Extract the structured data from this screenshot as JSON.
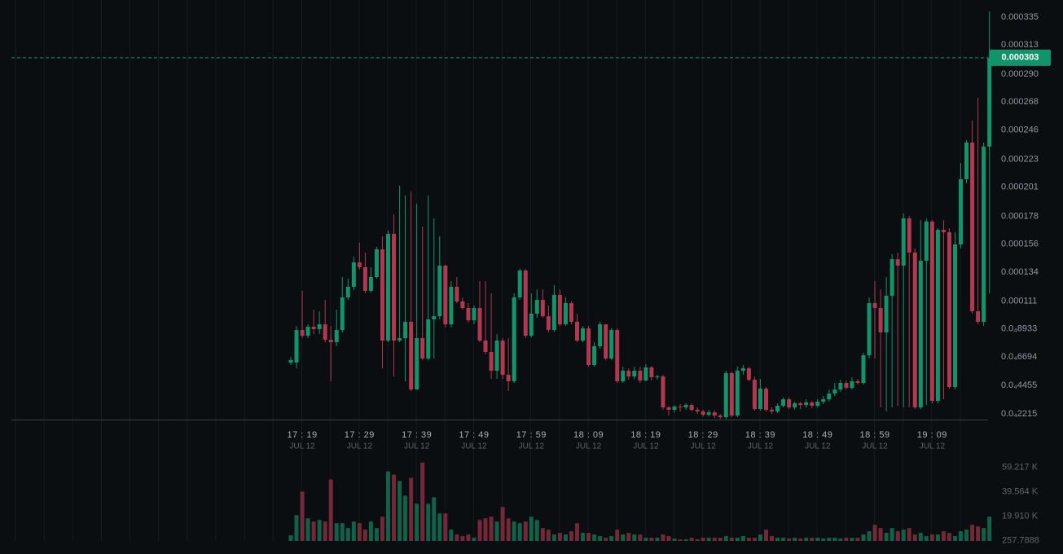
{
  "chart_data": {
    "type": "candlestick",
    "up_color": "#12946b",
    "down_color": "#b2384f",
    "ylim": [
      1.77e-05,
      0.0003395
    ],
    "yticks": [
      0.000335,
      0.000313,
      {
        "value": 0.00029,
        "label": "0.000290"
      },
      0.000268,
      0.000246,
      0.000223,
      0.000201,
      0.000178,
      0.000156,
      0.000134,
      0.000111,
      {
        "value": 8.933e-05,
        "label": "0.0₄8933"
      },
      {
        "value": 6.694e-05,
        "label": "0.0₄6694"
      },
      {
        "value": 4.455e-05,
        "label": "0.0₄4455"
      },
      {
        "value": 2.215e-05,
        "label": "0.0₄2215"
      }
    ],
    "xticks": [
      {
        "time": "17 : 19",
        "date": "JUL 12"
      },
      {
        "time": "17 : 29",
        "date": "JUL 12"
      },
      {
        "time": "17 : 39",
        "date": "JUL 12"
      },
      {
        "time": "17 : 49",
        "date": "JUL 12"
      },
      {
        "time": "17 : 59",
        "date": "JUL 12"
      },
      {
        "time": "18 : 09",
        "date": "JUL 12"
      },
      {
        "time": "18 : 19",
        "date": "JUL 12"
      },
      {
        "time": "18 : 29",
        "date": "JUL 12"
      },
      {
        "time": "18 : 39",
        "date": "JUL 12"
      },
      {
        "time": "18 : 49",
        "date": "JUL 12"
      },
      {
        "time": "18 : 59",
        "date": "JUL 12"
      },
      {
        "time": "19 : 09",
        "date": "JUL 12"
      }
    ],
    "open": [
      6.26e-05,
      6.26e-05,
      8.83e-05,
      8.38e-05,
      9.09e-05,
      8.9e-05,
      9.28e-05,
      8.06e-05,
      7.87e-05,
      8.83e-05,
      0.000114,
      0.0001224,
      0.0001416,
      0.0001378,
      0.0001192,
      0.0001301,
      0.0001519,
      8e-05,
      0.0001641,
      8e-05,
      8.19e-05,
      9.48e-05,
      4.14e-05,
      8.19e-05,
      6.58e-05,
      9.67e-05,
      9.92e-05,
      0.0001391,
      9.28e-05,
      0.0001224,
      0.0001108,
      0.0001057,
      9.6e-05,
      0.0001057,
      8e-05,
      7.1e-05,
      5.62e-05,
      8e-05,
      5.3e-05,
      4.79e-05,
      0.000114,
      0.0001352,
      8.38e-05,
      0.0001012,
      0.0001121,
      9.92e-05,
      8.83e-05,
      0.000116,
      9.28e-05,
      0.0001095,
      9.48e-05,
      8e-05,
      8.96e-05,
      6.07e-05,
      7.55e-05,
      9.28e-05,
      6.58e-05,
      8.83e-05,
      4.79e-05,
      5.62e-05,
      5.17e-05,
      5.62e-05,
      4.85e-05,
      5.88e-05,
      5.11e-05,
      5.17e-05,
      2.73e-05,
      2.54e-05,
      2.79e-05,
      2.73e-05,
      2.92e-05,
      2.54e-05,
      2.41e-05,
      2.15e-05,
      2.34e-05,
      2.09e-05,
      1.96e-05,
      5.43e-05,
      2.09e-05,
      5.62e-05,
      5.81e-05,
      4.91e-05,
      2.6e-05,
      4.21e-05,
      2.54e-05,
      2.41e-05,
      2.86e-05,
      3.37e-05,
      2.73e-05,
      3.05e-05,
      2.92e-05,
      3.12e-05,
      2.86e-05,
      3.18e-05,
      3.37e-05,
      3.82e-05,
      4.14e-05,
      4.66e-05,
      4.27e-05,
      4.79e-05,
      4.66e-05,
      6.84e-05,
      0.0001095,
      0.0001057,
      8.64e-05,
      0.0001153,
      0.0001442,
      0.0001391,
      0.0001763,
      0.0001494,
      2.73e-05,
      0.0001429,
      0.0001738,
      3.24e-05,
      0.0001673,
      0.0001654,
      4.34e-05,
      0.0001558,
      0.0002072,
      0.0002361,
      0.0001031,
      9.48e-05,
      0.0002329
    ],
    "high": [
      6.71e-05,
      9.15e-05,
      0.0001192,
      9.28e-05,
      0.0001044,
      0.0001031,
      0.0001121,
      9.15e-05,
      0.0001044,
      0.0001301,
      0.0001288,
      0.0001461,
      0.0001571,
      0.0001494,
      0.0001378,
      0.0001539,
      0.0001622,
      0.0001667,
      0.0001796,
      0.000202,
      0.0001943,
      0.0001975,
      0.0001879,
      0.0001699,
      0.0001943,
      0.0001763,
      0.0001622,
      0.0001397,
      0.0001269,
      0.0001301,
      0.000114,
      0.0001095,
      0.0001076,
      0.0001269,
      0.0001269,
      0.0001172,
      8.51e-05,
      8.19e-05,
      8.19e-05,
      0.0001172,
      0.0001365,
      0.0001365,
      0.0001172,
      0.0001204,
      0.0001204,
      0.0001076,
      0.0001237,
      0.0001204,
      0.000114,
      0.0001108,
      0.0001012,
      9.15e-05,
      9.15e-05,
      7.87e-05,
      9.48e-05,
      9.15e-05,
      8.96e-05,
      8.96e-05,
      5.94e-05,
      5.81e-05,
      5.94e-05,
      5.94e-05,
      6.14e-05,
      6.01e-05,
      5.3e-05,
      5.3e-05,
      2.86e-05,
      2.92e-05,
      2.99e-05,
      3.05e-05,
      3.05e-05,
      2.73e-05,
      2.54e-05,
      2.54e-05,
      2.47e-05,
      2.22e-05,
      5.62e-05,
      5.56e-05,
      5.94e-05,
      6.07e-05,
      5.94e-05,
      5.17e-05,
      4.98e-05,
      4.34e-05,
      2.73e-05,
      3.05e-05,
      3.5e-05,
      3.5e-05,
      3.18e-05,
      3.18e-05,
      3.37e-05,
      3.24e-05,
      3.37e-05,
      3.63e-05,
      4.14e-05,
      4.66e-05,
      4.91e-05,
      4.85e-05,
      5.11e-05,
      4.98e-05,
      7.03e-05,
      0.000114,
      0.0001269,
      0.0001204,
      0.0001301,
      0.0001481,
      0.0001494,
      0.0001802,
      0.0001783,
      0.0001526,
      0.000175,
      0.0001763,
      0.000175,
      0.0001686,
      0.000175,
      0.0001686,
      0.0001654,
      0.00022,
      0.000238,
      0.0002534,
      0.0002714,
      0.0002361,
      0.0003395
    ],
    "low": [
      6.07e-05,
      5.81e-05,
      8.19e-05,
      8.19e-05,
      8.51e-05,
      8.51e-05,
      7.87e-05,
      4.79e-05,
      7.55e-05,
      8.64e-05,
      0.0001121,
      0.0001198,
      0.0001359,
      0.0001172,
      0.0001179,
      0.0001288,
      5.81e-05,
      7.87e-05,
      5.17e-05,
      7.87e-05,
      4.79e-05,
      4.01e-05,
      4.14e-05,
      6.46e-05,
      6.46e-05,
      6.58e-05,
      9.67e-05,
      9.03e-05,
      9.03e-05,
      0.0001095,
      0.0001044,
      9.41e-05,
      9.28e-05,
      7.87e-05,
      6.91e-05,
      4.98e-05,
      4.98e-05,
      4.98e-05,
      4.01e-05,
      4.66e-05,
      0.0001121,
      8.19e-05,
      8.25e-05,
      9.8e-05,
      9.8e-05,
      8.64e-05,
      8.7e-05,
      9.15e-05,
      9.15e-05,
      9.28e-05,
      7.87e-05,
      7.87e-05,
      5.94e-05,
      5.94e-05,
      7.36e-05,
      6.46e-05,
      6.46e-05,
      4.66e-05,
      4.66e-05,
      4.91e-05,
      4.98e-05,
      4.66e-05,
      4.79e-05,
      4.85e-05,
      4.91e-05,
      2.54e-05,
      2.09e-05,
      2.34e-05,
      2.41e-05,
      2.54e-05,
      2.41e-05,
      2.22e-05,
      2.02e-05,
      2.02e-05,
      1.9e-05,
      1.83e-05,
      1.83e-05,
      1.96e-05,
      1.96e-05,
      5.3e-05,
      4.79e-05,
      2.47e-05,
      2.47e-05,
      2.41e-05,
      2.22e-05,
      2.28e-05,
      2.73e-05,
      2.6e-05,
      2.54e-05,
      2.6e-05,
      2.73e-05,
      2.67e-05,
      2.73e-05,
      2.99e-05,
      3.18e-05,
      3.63e-05,
      3.95e-05,
      4.14e-05,
      4.14e-05,
      4.53e-05,
      4.53e-05,
      6.58e-05,
      6.58e-05,
      2.73e-05,
      2.41e-05,
      2.73e-05,
      2.86e-05,
      2.73e-05,
      2.73e-05,
      2.6e-05,
      2.6e-05,
      2.92e-05,
      3.05e-05,
      3.05e-05,
      3.37e-05,
      4.21e-05,
      4.14e-05,
      0.0001526,
      0.000204,
      0.0001012,
      9.28e-05,
      9.15e-05,
      0.0001172
    ],
    "close": [
      6.46e-05,
      8.83e-05,
      8.38e-05,
      9.09e-05,
      8.9e-05,
      9.28e-05,
      8.06e-05,
      7.87e-05,
      8.83e-05,
      0.000114,
      0.0001224,
      0.0001416,
      0.0001378,
      0.0001192,
      0.0001301,
      0.0001519,
      8e-05,
      0.0001641,
      8e-05,
      8.19e-05,
      9.48e-05,
      4.14e-05,
      8.19e-05,
      6.58e-05,
      9.67e-05,
      9.92e-05,
      0.0001391,
      9.28e-05,
      0.0001224,
      0.0001108,
      0.0001057,
      9.6e-05,
      0.0001057,
      8e-05,
      7.1e-05,
      5.62e-05,
      8e-05,
      5.3e-05,
      4.79e-05,
      0.000114,
      0.0001352,
      8.38e-05,
      0.0001012,
      0.0001121,
      9.92e-05,
      8.83e-05,
      0.000116,
      9.28e-05,
      0.0001095,
      9.48e-05,
      8e-05,
      8.96e-05,
      6.07e-05,
      7.55e-05,
      9.28e-05,
      6.58e-05,
      8.83e-05,
      4.79e-05,
      5.62e-05,
      5.17e-05,
      5.62e-05,
      4.85e-05,
      5.88e-05,
      5.11e-05,
      5.17e-05,
      2.73e-05,
      2.54e-05,
      2.79e-05,
      2.73e-05,
      2.92e-05,
      2.54e-05,
      2.41e-05,
      2.15e-05,
      2.34e-05,
      2.09e-05,
      1.96e-05,
      5.43e-05,
      2.09e-05,
      5.62e-05,
      5.81e-05,
      4.91e-05,
      2.6e-05,
      4.21e-05,
      2.54e-05,
      2.41e-05,
      2.86e-05,
      3.37e-05,
      2.73e-05,
      3.05e-05,
      2.92e-05,
      3.12e-05,
      2.86e-05,
      3.18e-05,
      3.37e-05,
      3.82e-05,
      4.14e-05,
      4.66e-05,
      4.27e-05,
      4.79e-05,
      4.66e-05,
      6.84e-05,
      0.0001095,
      0.0001057,
      8.64e-05,
      0.0001153,
      0.0001442,
      0.0001391,
      0.0001763,
      0.0001494,
      2.73e-05,
      0.0001429,
      0.0001738,
      3.24e-05,
      0.0001673,
      0.0001654,
      4.34e-05,
      0.0001558,
      0.0002072,
      0.0002361,
      0.0001031,
      9.48e-05,
      0.0002329,
      0.000303
    ],
    "volume_ylim": [
      0,
      63500
    ],
    "volume_yticks": [
      {
        "value": 59217,
        "label": "59.217 K"
      },
      {
        "value": 39564,
        "label": "39.564 K"
      },
      {
        "value": 19910,
        "label": "19.910 K"
      },
      257.7888
    ],
    "volume": [
      4550,
      20800,
      39650,
      18200,
      15600,
      16900,
      15600,
      49400,
      14300,
      14300,
      10400,
      15600,
      14300,
      9100,
      15600,
      10400,
      19500,
      55900,
      53300,
      48100,
      36400,
      50700,
      29900,
      63000,
      29900,
      35100,
      22100,
      22100,
      9100,
      5200,
      3900,
      5200,
      2600,
      16900,
      18200,
      19500,
      15600,
      27300,
      18200,
      15600,
      14300,
      15600,
      19500,
      16900,
      10400,
      9100,
      5200,
      6500,
      5200,
      7800,
      14300,
      6500,
      6500,
      5200,
      3900,
      2600,
      3900,
      9100,
      5200,
      6500,
      5200,
      5200,
      2600,
      2600,
      2600,
      5200,
      3900,
      1950,
      1300,
      1300,
      2600,
      1300,
      2600,
      2600,
      2600,
      2600,
      3900,
      2600,
      2600,
      3900,
      2600,
      2600,
      5200,
      9100,
      3900,
      2600,
      2600,
      1950,
      2600,
      1950,
      2600,
      2600,
      2600,
      1950,
      2600,
      2600,
      1950,
      2600,
      2600,
      2600,
      5200,
      7800,
      13000,
      10400,
      6500,
      10400,
      7800,
      9100,
      10400,
      5200,
      6500,
      3900,
      5200,
      5200,
      7800,
      6500,
      3900,
      7800,
      9100,
      13000,
      11700,
      10400,
      19500
    ]
  }
}
